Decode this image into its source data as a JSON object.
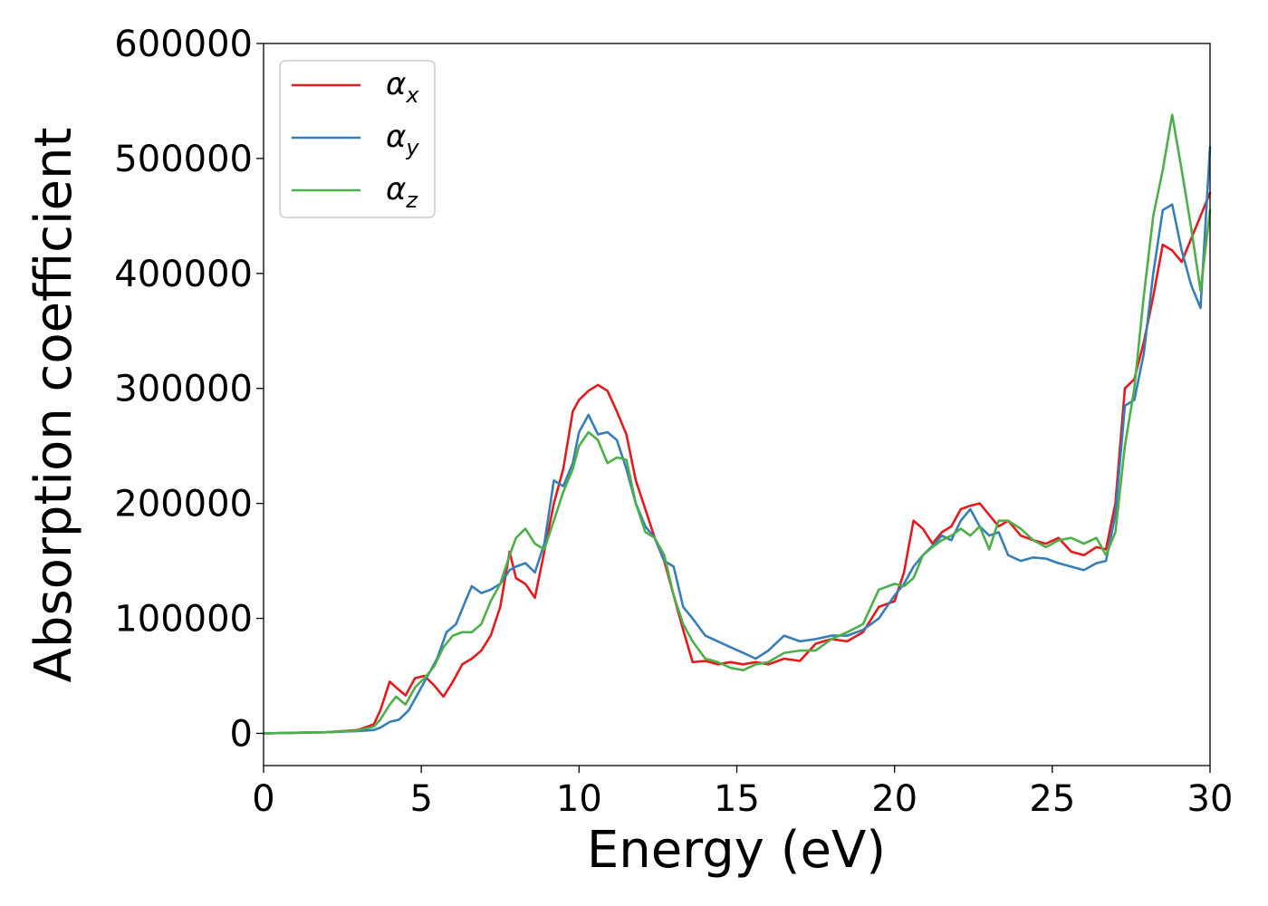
{
  "chart_data": {
    "type": "line",
    "xlabel": "Energy (eV)",
    "ylabel": "Absorption coefficient",
    "xlim": [
      0,
      30
    ],
    "ylim": [
      -28000,
      600000
    ],
    "xticks": [
      0,
      5,
      10,
      15,
      20,
      25,
      30
    ],
    "xtick_labels": [
      "0",
      "5",
      "10",
      "15",
      "20",
      "25",
      "30"
    ],
    "yticks": [
      0,
      100000,
      200000,
      300000,
      400000,
      500000,
      600000
    ],
    "ytick_labels": [
      "0",
      "100000",
      "200000",
      "300000",
      "400000",
      "500000",
      "600000"
    ],
    "grid": false,
    "legend_position": "top-left",
    "series": [
      {
        "name": "α_x",
        "legend_base": "α",
        "legend_sub": "x",
        "color": "#e41a1c",
        "x": [
          0,
          1,
          2,
          3,
          3.5,
          3.7,
          4.0,
          4.2,
          4.5,
          4.8,
          5.1,
          5.4,
          5.7,
          6.0,
          6.3,
          6.6,
          6.9,
          7.2,
          7.5,
          7.8,
          8.0,
          8.3,
          8.6,
          8.9,
          9.2,
          9.5,
          9.8,
          10.0,
          10.3,
          10.6,
          10.9,
          11.2,
          11.5,
          11.8,
          12.1,
          12.4,
          12.7,
          13.0,
          13.3,
          13.6,
          14.0,
          14.4,
          14.8,
          15.2,
          15.6,
          16.0,
          16.5,
          17.0,
          17.5,
          18.0,
          18.5,
          19.0,
          19.5,
          20.0,
          20.3,
          20.6,
          20.9,
          21.2,
          21.5,
          21.8,
          22.1,
          22.4,
          22.7,
          23.0,
          23.3,
          23.6,
          24.0,
          24.4,
          24.8,
          25.2,
          25.6,
          26.0,
          26.4,
          26.7,
          27.0,
          27.3,
          27.6,
          27.9,
          28.2,
          28.5,
          28.8,
          29.1,
          29.4,
          29.7,
          30.0
        ],
        "y": [
          0,
          500,
          1000,
          3000,
          8000,
          20000,
          45000,
          40000,
          33000,
          48000,
          50000,
          42000,
          32000,
          45000,
          60000,
          65000,
          72000,
          85000,
          110000,
          158000,
          135000,
          130000,
          118000,
          158000,
          200000,
          230000,
          280000,
          290000,
          298000,
          303000,
          298000,
          280000,
          260000,
          220000,
          195000,
          170000,
          150000,
          120000,
          90000,
          62000,
          63000,
          60000,
          62000,
          60000,
          62000,
          60000,
          65000,
          63000,
          78000,
          82000,
          80000,
          88000,
          110000,
          115000,
          140000,
          185000,
          178000,
          165000,
          175000,
          180000,
          195000,
          198000,
          200000,
          190000,
          180000,
          185000,
          172000,
          168000,
          165000,
          170000,
          158000,
          155000,
          162000,
          160000,
          200000,
          300000,
          308000,
          340000,
          380000,
          425000,
          420000,
          410000,
          430000,
          450000,
          470000
        ]
      },
      {
        "name": "α_y",
        "legend_base": "α",
        "legend_sub": "y",
        "color": "#377eb8",
        "x": [
          0,
          1,
          2,
          3,
          3.5,
          3.7,
          4.0,
          4.3,
          4.6,
          4.9,
          5.2,
          5.5,
          5.8,
          6.1,
          6.4,
          6.6,
          6.9,
          7.2,
          7.5,
          7.8,
          8.0,
          8.3,
          8.6,
          8.9,
          9.2,
          9.5,
          9.8,
          10.0,
          10.3,
          10.6,
          10.9,
          11.2,
          11.5,
          11.8,
          12.1,
          12.4,
          12.7,
          13.0,
          13.3,
          13.6,
          14.0,
          14.4,
          14.8,
          15.2,
          15.6,
          16.0,
          16.5,
          17.0,
          17.5,
          18.0,
          18.5,
          19.0,
          19.5,
          20.0,
          20.3,
          20.6,
          20.9,
          21.2,
          21.5,
          21.8,
          22.1,
          22.4,
          22.7,
          23.0,
          23.3,
          23.6,
          24.0,
          24.4,
          24.8,
          25.2,
          25.6,
          26.0,
          26.4,
          26.7,
          27.0,
          27.3,
          27.6,
          27.9,
          28.2,
          28.5,
          28.8,
          29.1,
          29.4,
          29.7,
          30.0
        ],
        "y": [
          0,
          500,
          1000,
          2000,
          3000,
          5000,
          10000,
          12000,
          20000,
          35000,
          50000,
          65000,
          88000,
          95000,
          115000,
          128000,
          122000,
          125000,
          130000,
          142000,
          145000,
          148000,
          140000,
          165000,
          220000,
          215000,
          235000,
          262000,
          277000,
          260000,
          262000,
          255000,
          230000,
          200000,
          180000,
          170000,
          150000,
          145000,
          110000,
          100000,
          85000,
          80000,
          75000,
          70000,
          65000,
          72000,
          85000,
          80000,
          82000,
          85000,
          85000,
          90000,
          100000,
          120000,
          130000,
          145000,
          155000,
          163000,
          172000,
          168000,
          185000,
          195000,
          180000,
          172000,
          175000,
          155000,
          150000,
          153000,
          152000,
          148000,
          145000,
          142000,
          148000,
          150000,
          190000,
          285000,
          290000,
          330000,
          400000,
          455000,
          460000,
          420000,
          390000,
          370000,
          510000
        ]
      },
      {
        "name": "α_z",
        "legend_base": "α",
        "legend_sub": "z",
        "color": "#4daf4a",
        "x": [
          0,
          1,
          2,
          3,
          3.5,
          3.7,
          4.0,
          4.2,
          4.5,
          4.8,
          5.1,
          5.4,
          5.7,
          6.0,
          6.3,
          6.6,
          6.9,
          7.2,
          7.5,
          7.8,
          8.0,
          8.3,
          8.6,
          8.9,
          9.2,
          9.5,
          9.8,
          10.0,
          10.3,
          10.6,
          10.9,
          11.2,
          11.5,
          11.8,
          12.1,
          12.4,
          12.7,
          13.0,
          13.3,
          13.6,
          14.0,
          14.4,
          14.8,
          15.2,
          15.6,
          16.0,
          16.5,
          17.0,
          17.5,
          18.0,
          18.5,
          19.0,
          19.5,
          20.0,
          20.3,
          20.6,
          20.9,
          21.2,
          21.5,
          21.8,
          22.1,
          22.4,
          22.7,
          23.0,
          23.3,
          23.6,
          24.0,
          24.4,
          24.8,
          25.2,
          25.6,
          26.0,
          26.4,
          26.7,
          27.0,
          27.3,
          27.6,
          27.9,
          28.2,
          28.5,
          28.8,
          29.1,
          29.4,
          29.7,
          30.0
        ],
        "y": [
          0,
          500,
          1000,
          2500,
          6000,
          12000,
          25000,
          32000,
          25000,
          40000,
          48000,
          58000,
          75000,
          85000,
          88000,
          88000,
          95000,
          115000,
          130000,
          155000,
          170000,
          178000,
          165000,
          160000,
          185000,
          210000,
          230000,
          250000,
          262000,
          255000,
          235000,
          240000,
          238000,
          200000,
          175000,
          170000,
          155000,
          120000,
          95000,
          80000,
          65000,
          62000,
          57000,
          55000,
          60000,
          62000,
          70000,
          72000,
          72000,
          82000,
          88000,
          95000,
          125000,
          130000,
          128000,
          135000,
          155000,
          162000,
          168000,
          172000,
          178000,
          172000,
          180000,
          160000,
          185000,
          185000,
          178000,
          168000,
          162000,
          168000,
          170000,
          165000,
          170000,
          155000,
          175000,
          250000,
          300000,
          380000,
          450000,
          490000,
          538000,
          490000,
          440000,
          385000,
          455000
        ]
      }
    ]
  }
}
